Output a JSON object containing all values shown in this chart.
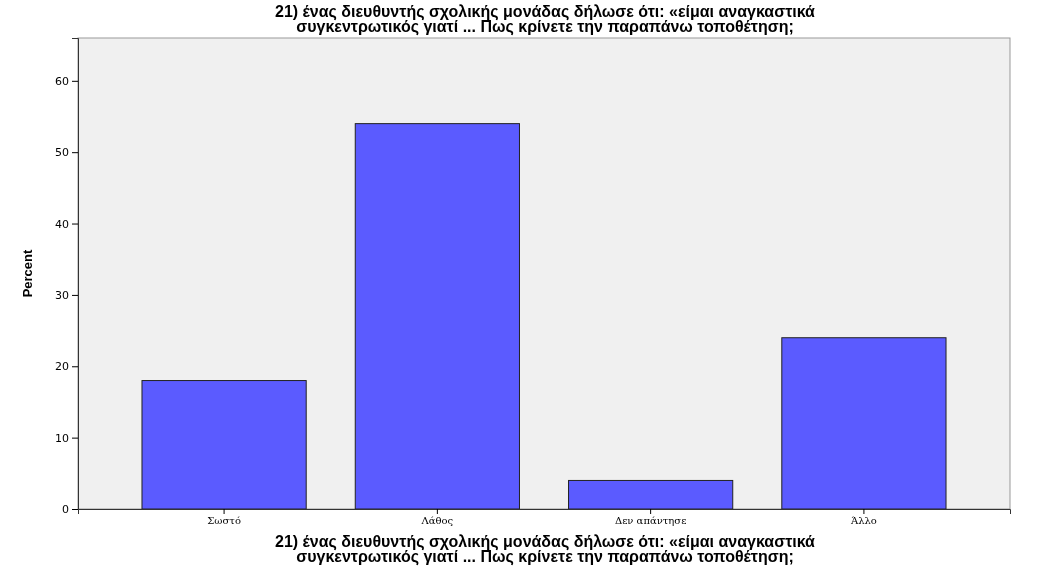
{
  "chart_data": {
    "type": "bar",
    "title": "21) ένας διευθυντής σχολικής μονάδας δήλωσε ότι: «είμαι αναγκαστικά συγκεντρωτικός γιατί ... Πως κρίνετε την παραπάνω τοποθέτηση;",
    "xlabel": "21) ένας διευθυντής σχολικής μονάδας δήλωσε ότι: «είμαι αναγκαστικά συγκεντρωτικός γιατί ... Πως κρίνετε την παραπάνω τοποθέτηση;",
    "ylabel": "Percent",
    "categories": [
      "Σωστό",
      "Λάθος",
      "Δεν απάντησε",
      "Άλλο"
    ],
    "values": [
      18,
      54,
      4,
      24
    ],
    "color": "#5b5bff",
    "ylim": [
      0,
      66
    ],
    "yticks": [
      0,
      10,
      20,
      30,
      40,
      50,
      60
    ],
    "grid": false
  }
}
